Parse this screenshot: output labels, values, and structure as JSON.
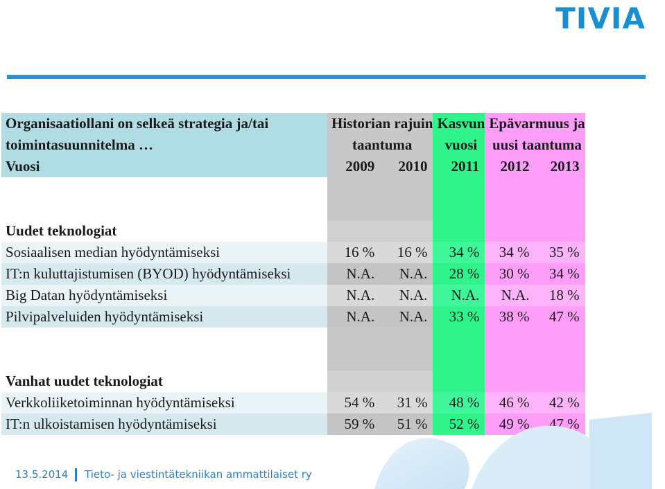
{
  "logo": "TIVIA",
  "header": {
    "statement": "Organisaatiollani on selkeä strategia ja/tai toimintasuunnitelma …",
    "statement_line1": "Organisaatiollani   on   selkeä   strategia   ja/tai",
    "statement_line2": "toimintasuunnitelma …",
    "vuosi": "Vuosi",
    "periods": {
      "historia_line1": "Historian rajuin",
      "historia_line2": "taantuma",
      "kasvun_line1": "Kasvun",
      "kasvun_line2": "vuosi",
      "epavarmuus_line1": "Epävarmuus ja",
      "epavarmuus_line2": "uusi taantuma"
    },
    "years": [
      "2009",
      "2010",
      "2011",
      "2012",
      "2013"
    ]
  },
  "sections": [
    {
      "title": "Uudet teknologiat",
      "rows": [
        {
          "label": "Sosiaalisen median hyödyntämiseksi",
          "values": [
            "16 %",
            "16 %",
            "34 %",
            "34 %",
            "35 %"
          ]
        },
        {
          "label": "IT:n kuluttajistumisen (BYOD) hyödyntämiseksi",
          "values": [
            "N.A.",
            "N.A.",
            "28 %",
            "30 %",
            "34 %"
          ]
        },
        {
          "label": "Big Datan hyödyntämiseksi",
          "values": [
            "N.A.",
            "N.A.",
            "N.A.",
            "N.A.",
            "18 %"
          ]
        },
        {
          "label": "Pilvipalveluiden hyödyntämiseksi",
          "values": [
            "N.A.",
            "N.A.",
            "33 %",
            "38 %",
            "47 %"
          ]
        }
      ]
    },
    {
      "title": "Vanhat uudet teknologiat",
      "rows": [
        {
          "label": "Verkkoliiketoiminnan hyödyntämiseksi",
          "values": [
            "54 %",
            "31 %",
            "48 %",
            "46 %",
            "42 %"
          ]
        },
        {
          "label": "IT:n ulkoistamisen hyödyntämiseksi",
          "values": [
            "59 %",
            "51 %",
            "52 %",
            "49 %",
            "47 %"
          ]
        }
      ]
    }
  ],
  "footer": {
    "date": "13.5.2014",
    "text": "Tieto- ja viestintätekniikan ammattilaiset ry"
  },
  "colors": {
    "header_bg": "#b0dde4",
    "historia": "#c8c8c8",
    "kasvun": "#2ff48a",
    "epavarmuus": "#ff9ef9",
    "accent": "#2a93d5"
  }
}
